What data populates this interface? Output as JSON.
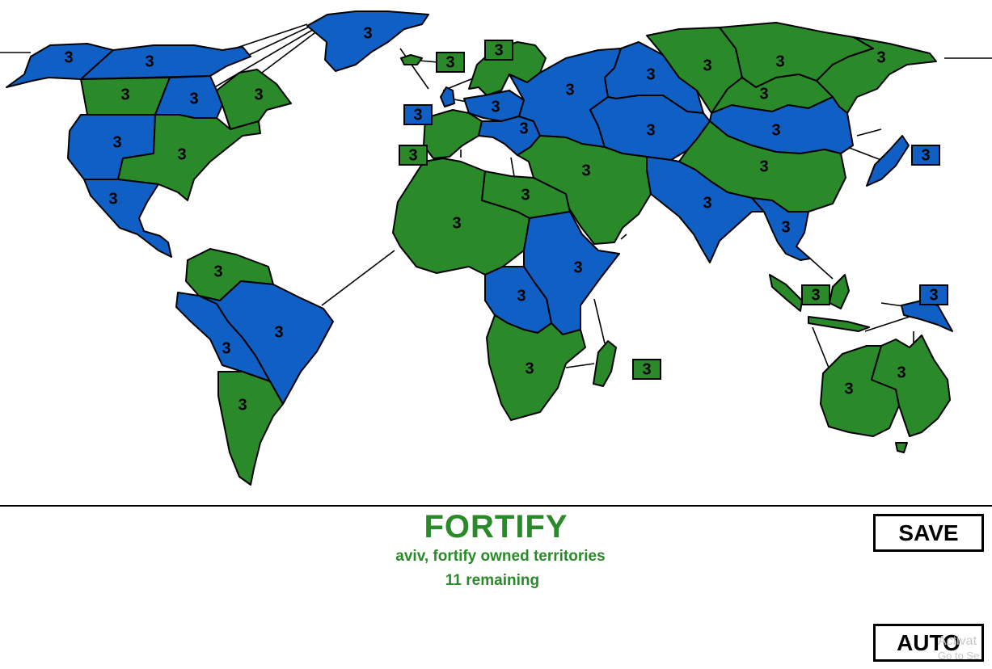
{
  "colors": {
    "blue_player": "#0f5fc4",
    "green_player": "#2a8a2a",
    "phase_text": "#2a8a2a"
  },
  "status": {
    "phase": "FORTIFY",
    "instruction": "aviv, fortify owned territories",
    "remaining": "11 remaining"
  },
  "buttons": {
    "save": "SAVE",
    "auto": "AUTO"
  },
  "watermark": {
    "line1": "Activat",
    "line2": "Go to Se"
  },
  "territories": [
    {
      "id": "alaska",
      "owner": "blue",
      "armies": "3"
    },
    {
      "id": "northwest-territory",
      "owner": "blue",
      "armies": "3"
    },
    {
      "id": "greenland",
      "owner": "blue",
      "armies": "3"
    },
    {
      "id": "alberta",
      "owner": "green",
      "armies": "3"
    },
    {
      "id": "ontario",
      "owner": "blue",
      "armies": "3"
    },
    {
      "id": "quebec",
      "owner": "green",
      "armies": "3"
    },
    {
      "id": "western-us",
      "owner": "blue",
      "armies": "3"
    },
    {
      "id": "eastern-us",
      "owner": "green",
      "armies": "3"
    },
    {
      "id": "central-america",
      "owner": "blue",
      "armies": "3"
    },
    {
      "id": "venezuela",
      "owner": "green",
      "armies": "3"
    },
    {
      "id": "peru",
      "owner": "blue",
      "armies": "3"
    },
    {
      "id": "brazil",
      "owner": "blue",
      "armies": "3"
    },
    {
      "id": "argentina",
      "owner": "green",
      "armies": "3"
    },
    {
      "id": "iceland",
      "owner": "green",
      "armies": "3"
    },
    {
      "id": "scandinavia",
      "owner": "green",
      "armies": "3"
    },
    {
      "id": "great-britain",
      "owner": "blue",
      "armies": "3"
    },
    {
      "id": "northern-europe",
      "owner": "blue",
      "armies": "3"
    },
    {
      "id": "western-europe",
      "owner": "green",
      "armies": "3"
    },
    {
      "id": "southern-europe",
      "owner": "blue",
      "armies": "3"
    },
    {
      "id": "ukraine",
      "owner": "blue",
      "armies": "3"
    },
    {
      "id": "north-africa",
      "owner": "green",
      "armies": "3"
    },
    {
      "id": "egypt",
      "owner": "green",
      "armies": "3"
    },
    {
      "id": "east-africa",
      "owner": "blue",
      "armies": "3"
    },
    {
      "id": "congo",
      "owner": "blue",
      "armies": "3"
    },
    {
      "id": "south-africa",
      "owner": "green",
      "armies": "3"
    },
    {
      "id": "madagascar",
      "owner": "green",
      "armies": "3"
    },
    {
      "id": "ural",
      "owner": "blue",
      "armies": "3"
    },
    {
      "id": "siberia",
      "owner": "green",
      "armies": "3"
    },
    {
      "id": "yakutsk",
      "owner": "green",
      "armies": "3"
    },
    {
      "id": "kamchatka",
      "owner": "green",
      "armies": "3"
    },
    {
      "id": "irkutsk",
      "owner": "green",
      "armies": "3"
    },
    {
      "id": "mongolia",
      "owner": "blue",
      "armies": "3"
    },
    {
      "id": "afghanistan",
      "owner": "blue",
      "armies": "3"
    },
    {
      "id": "middle-east",
      "owner": "green",
      "armies": "3"
    },
    {
      "id": "china",
      "owner": "green",
      "armies": "3"
    },
    {
      "id": "india",
      "owner": "blue",
      "armies": "3"
    },
    {
      "id": "siam",
      "owner": "blue",
      "armies": "3"
    },
    {
      "id": "japan",
      "owner": "blue",
      "armies": "3"
    },
    {
      "id": "indonesia",
      "owner": "green",
      "armies": "3"
    },
    {
      "id": "new-guinea",
      "owner": "blue",
      "armies": "3"
    },
    {
      "id": "western-australia",
      "owner": "green",
      "armies": "3"
    },
    {
      "id": "eastern-australia",
      "owner": "green",
      "armies": "3"
    }
  ]
}
